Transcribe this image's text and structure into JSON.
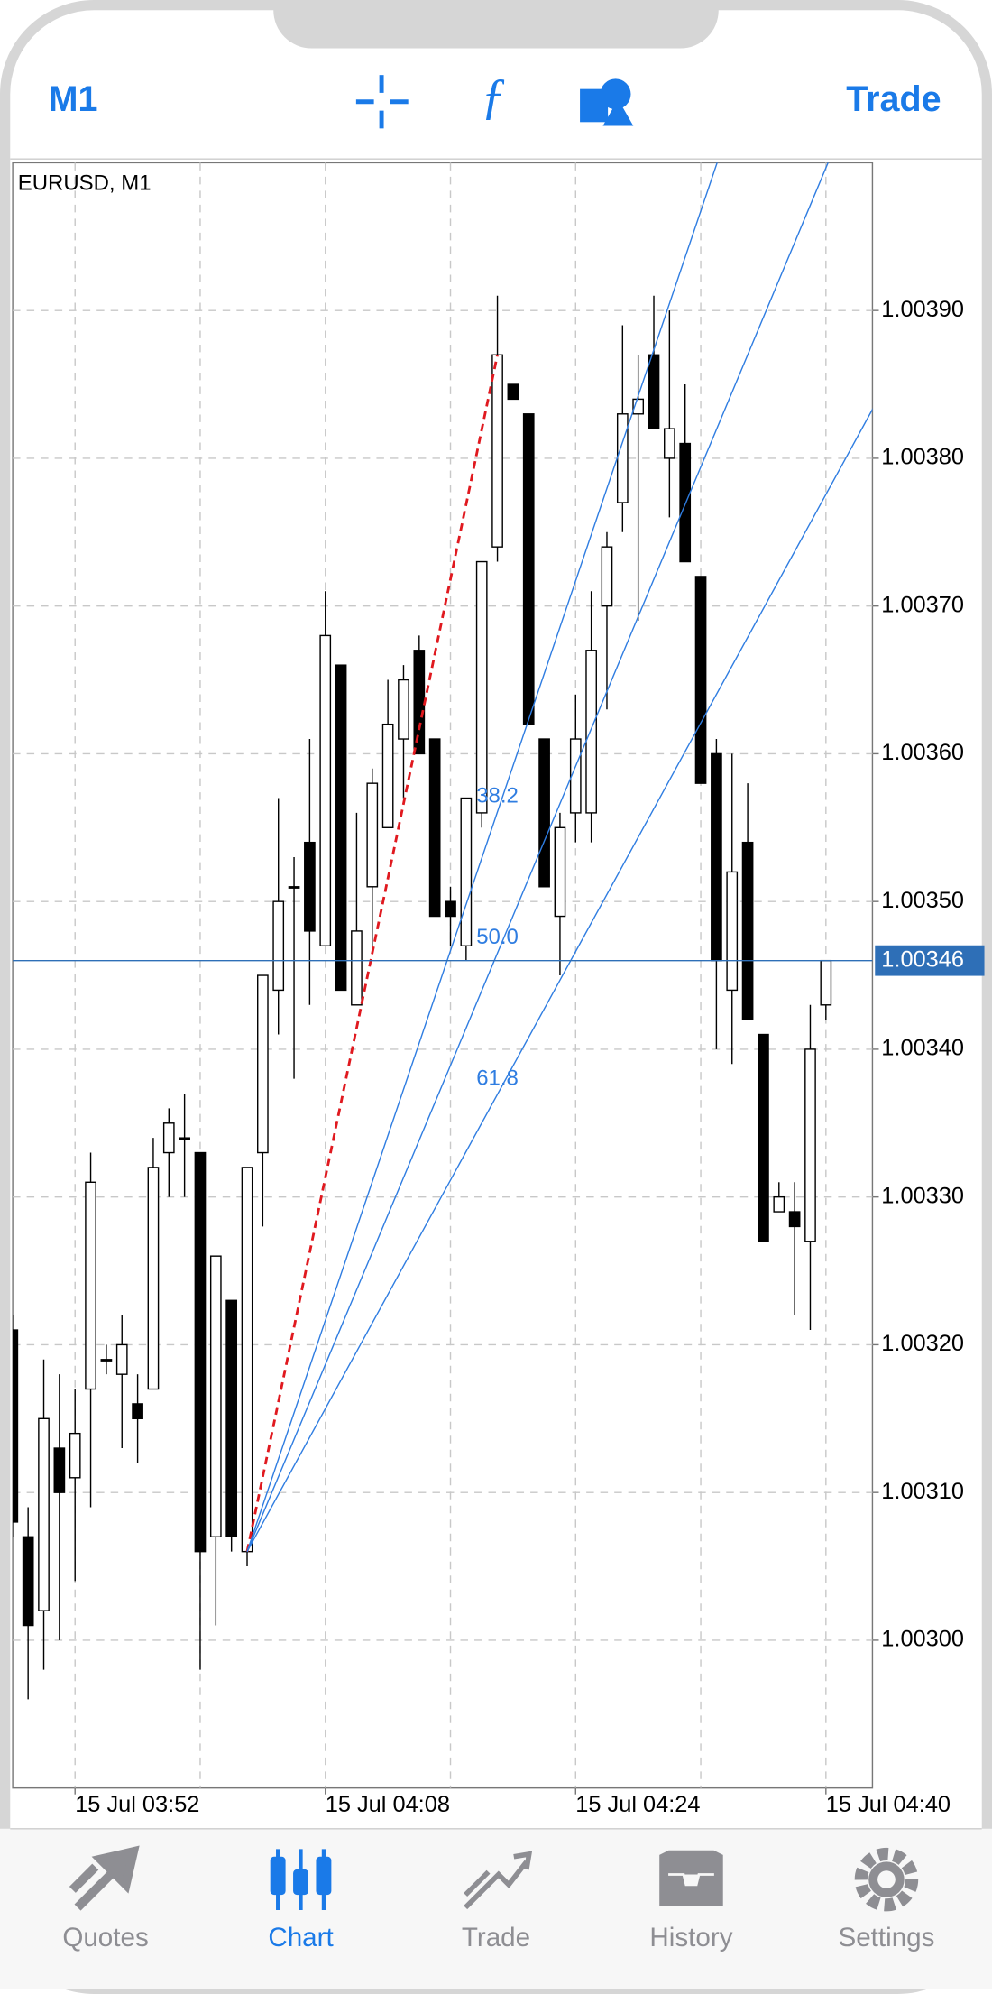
{
  "header": {
    "timeframe": "M1",
    "trade": "Trade"
  },
  "chart_data": {
    "type": "candlestick",
    "title": "EURUSD, M1",
    "x": [
      "15 Jul 03:48",
      "15 Jul 03:49",
      "15 Jul 03:50",
      "15 Jul 03:51",
      "15 Jul 03:52",
      "15 Jul 03:53",
      "15 Jul 03:54",
      "15 Jul 03:55",
      "15 Jul 03:56",
      "15 Jul 03:57",
      "15 Jul 03:58",
      "15 Jul 03:59",
      "15 Jul 04:00",
      "15 Jul 04:01",
      "15 Jul 04:02",
      "15 Jul 04:03",
      "15 Jul 04:04",
      "15 Jul 04:05",
      "15 Jul 04:06",
      "15 Jul 04:07",
      "15 Jul 04:08",
      "15 Jul 04:09",
      "15 Jul 04:10",
      "15 Jul 04:11",
      "15 Jul 04:12",
      "15 Jul 04:13",
      "15 Jul 04:14",
      "15 Jul 04:15",
      "15 Jul 04:16",
      "15 Jul 04:17",
      "15 Jul 04:18",
      "15 Jul 04:19",
      "15 Jul 04:20",
      "15 Jul 04:21",
      "15 Jul 04:22",
      "15 Jul 04:23",
      "15 Jul 04:24",
      "15 Jul 04:25",
      "15 Jul 04:26",
      "15 Jul 04:27",
      "15 Jul 04:28",
      "15 Jul 04:29",
      "15 Jul 04:30",
      "15 Jul 04:31",
      "15 Jul 04:32",
      "15 Jul 04:33",
      "15 Jul 04:34",
      "15 Jul 04:35",
      "15 Jul 04:36",
      "15 Jul 04:37",
      "15 Jul 04:38",
      "15 Jul 04:39",
      "15 Jul 04:40"
    ],
    "open": [
      1.00321,
      1.00307,
      1.00302,
      1.00313,
      1.00311,
      1.00317,
      1.00319,
      1.00318,
      1.00316,
      1.00317,
      1.00333,
      1.00334,
      1.00333,
      1.00307,
      1.00323,
      1.00306,
      1.00333,
      1.00344,
      1.00351,
      1.00354,
      1.00347,
      1.00366,
      1.00343,
      1.00351,
      1.00355,
      1.00361,
      1.00367,
      1.00361,
      1.0035,
      1.00347,
      1.00356,
      1.00374,
      1.00385,
      1.00383,
      1.00361,
      1.00349,
      1.00356,
      1.00356,
      1.0037,
      1.00377,
      1.00383,
      1.00387,
      1.0038,
      1.00381,
      1.00372,
      1.0036,
      1.00344,
      1.00354,
      1.00341,
      1.00329,
      1.00329,
      1.00327,
      1.00343
    ],
    "high": [
      1.00322,
      1.00309,
      1.00319,
      1.00318,
      1.00317,
      1.00333,
      1.0032,
      1.00322,
      1.00318,
      1.00334,
      1.00336,
      1.00337,
      1.00333,
      1.00326,
      1.00323,
      1.00332,
      1.00345,
      1.00357,
      1.00353,
      1.00361,
      1.00371,
      1.00366,
      1.00356,
      1.00359,
      1.00365,
      1.00366,
      1.00368,
      1.00361,
      1.00351,
      1.00357,
      1.00373,
      1.00391,
      1.00385,
      1.00383,
      1.00361,
      1.00356,
      1.00364,
      1.00371,
      1.00375,
      1.00389,
      1.00387,
      1.00391,
      1.0039,
      1.00385,
      1.00372,
      1.00361,
      1.0036,
      1.00358,
      1.00341,
      1.00331,
      1.00331,
      1.00343,
      1.00346
    ],
    "low": [
      1.00307,
      1.00296,
      1.00298,
      1.003,
      1.00304,
      1.00309,
      1.00318,
      1.00313,
      1.00312,
      1.00317,
      1.0033,
      1.0033,
      1.00298,
      1.00301,
      1.00306,
      1.00305,
      1.00328,
      1.00341,
      1.00338,
      1.00343,
      1.00347,
      1.00344,
      1.00343,
      1.00347,
      1.00355,
      1.00357,
      1.0036,
      1.00349,
      1.00347,
      1.00346,
      1.00355,
      1.00373,
      1.00384,
      1.00362,
      1.00351,
      1.00345,
      1.00354,
      1.00354,
      1.00363,
      1.00375,
      1.00369,
      1.00382,
      1.00376,
      1.00373,
      1.00358,
      1.0034,
      1.00339,
      1.00342,
      1.00327,
      1.00329,
      1.00322,
      1.00321,
      1.00342
    ],
    "close": [
      1.00308,
      1.00301,
      1.00315,
      1.0031,
      1.00314,
      1.00331,
      1.00319,
      1.0032,
      1.00315,
      1.00332,
      1.00335,
      1.00334,
      1.00306,
      1.00326,
      1.00307,
      1.00332,
      1.00345,
      1.0035,
      1.00351,
      1.00348,
      1.00368,
      1.00344,
      1.00348,
      1.00358,
      1.00362,
      1.00365,
      1.0036,
      1.00349,
      1.00349,
      1.00357,
      1.00373,
      1.00387,
      1.00384,
      1.00362,
      1.00351,
      1.00355,
      1.00361,
      1.00367,
      1.00374,
      1.00383,
      1.00384,
      1.00382,
      1.00382,
      1.00373,
      1.00358,
      1.00346,
      1.00352,
      1.00342,
      1.00327,
      1.0033,
      1.00328,
      1.0034,
      1.00346
    ],
    "ylim": [
      1.0029,
      1.004
    ],
    "yticks": [
      {
        "value": 1.003,
        "label": "1.00300"
      },
      {
        "value": 1.0031,
        "label": "1.00310"
      },
      {
        "value": 1.0032,
        "label": "1.00320"
      },
      {
        "value": 1.0033,
        "label": "1.00330"
      },
      {
        "value": 1.0034,
        "label": "1.00340"
      },
      {
        "value": 1.0035,
        "label": "1.00350"
      },
      {
        "value": 1.0036,
        "label": "1.00360"
      },
      {
        "value": 1.0037,
        "label": "1.00370"
      },
      {
        "value": 1.0038,
        "label": "1.00380"
      },
      {
        "value": 1.0039,
        "label": "1.00390"
      }
    ],
    "xticks": [
      "15 Jul 03:52",
      "15 Jul 04:08",
      "15 Jul 04:24",
      "15 Jul 04:40"
    ],
    "xgrid": [
      "15 Jul 03:52",
      "15 Jul 04:00",
      "15 Jul 04:08",
      "15 Jul 04:16",
      "15 Jul 04:24",
      "15 Jul 04:32",
      "15 Jul 04:40"
    ],
    "grid": true,
    "up_color": "#ffffff",
    "down_color": "#000000",
    "last_price": {
      "value": 1.00346,
      "label": "1.00346"
    },
    "last_price_color": "#2e6fb7",
    "fibonacci_fan": {
      "start": {
        "x": "15 Jul 04:03",
        "y": 1.00306
      },
      "end": {
        "x": "15 Jul 04:19",
        "y": 1.00387
      },
      "levels": [
        38.2,
        {
          "value": 50,
          "label": "50.0"
        },
        61.8
      ],
      "color": "#2f7de1",
      "trend_color": "#e0191f"
    }
  },
  "tabs": [
    "Quotes",
    "Chart",
    "Trade",
    "History",
    "Settings"
  ],
  "active_tab": "Chart"
}
